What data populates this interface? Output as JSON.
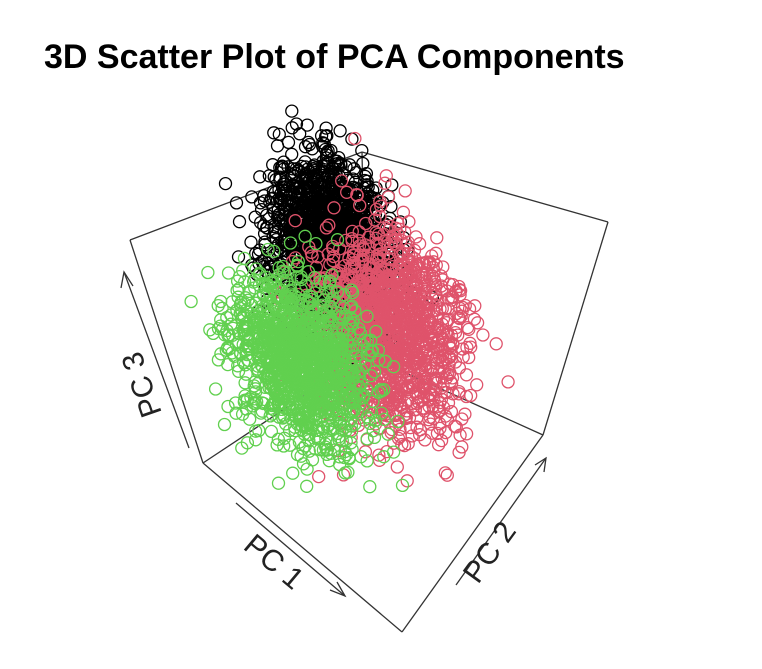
{
  "chart_data": {
    "type": "scatter",
    "title": "3D Scatter Plot of PCA Components",
    "axes": {
      "x_label": "PC 1",
      "y_label": "PC 2",
      "z_label": "PC 3"
    },
    "grid": false,
    "legend": "none",
    "marker": "open-circle",
    "series": [
      {
        "color": "#000000",
        "count": 1600,
        "center": [
          -1.2,
          1.8,
          1.3
        ],
        "spread": [
          0.9,
          1.0,
          1.0
        ]
      },
      {
        "color": "#DF536B",
        "count": 1400,
        "center": [
          1.3,
          1.2,
          0.4
        ],
        "spread": [
          1.1,
          1.3,
          1.2
        ]
      },
      {
        "color": "#61D04F",
        "count": 1300,
        "center": [
          -1.0,
          -1.0,
          -0.6
        ],
        "spread": [
          1.1,
          1.0,
          1.0
        ]
      }
    ]
  }
}
